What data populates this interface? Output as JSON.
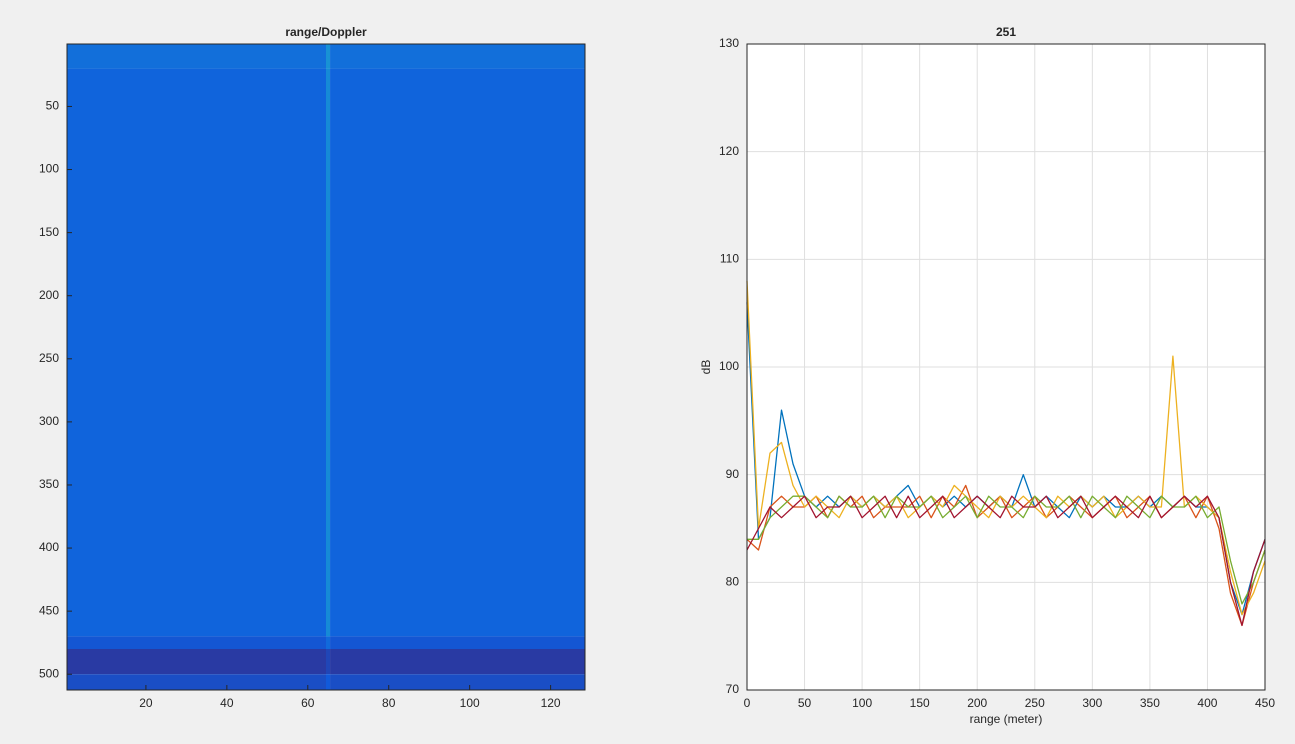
{
  "chart_data": [
    {
      "type": "heatmap",
      "title": "range/Doppler",
      "xbins": [
        0.5,
        64.5,
        65.5,
        128.5
      ],
      "ybins": [
        0.5,
        20,
        470,
        480,
        500,
        512.5
      ],
      "z": [
        [
          0.32,
          0.45,
          0.32
        ],
        [
          0.28,
          0.42,
          0.28
        ],
        [
          0.22,
          0.3,
          0.22
        ],
        [
          0.08,
          0.14,
          0.08
        ],
        [
          0.18,
          0.24,
          0.18
        ]
      ],
      "colormap": [
        "#352a87",
        "#0f5cdd",
        "#1aa0d2",
        "#a5be6a",
        "#f9fb0e"
      ],
      "xlim": [
        0.5,
        128.5
      ],
      "xticks": [
        20,
        40,
        60,
        80,
        100,
        120
      ],
      "ylim": [
        0.5,
        512.5
      ],
      "yticks": [
        50,
        100,
        150,
        200,
        250,
        300,
        350,
        400,
        450,
        500
      ],
      "yreverse": true
    },
    {
      "type": "line",
      "title": "251",
      "xlabel": "range (meter)",
      "ylabel": "dB",
      "x": [
        0,
        10,
        20,
        30,
        40,
        50,
        60,
        70,
        80,
        90,
        100,
        110,
        120,
        130,
        140,
        150,
        160,
        170,
        180,
        190,
        200,
        210,
        220,
        230,
        240,
        250,
        260,
        270,
        280,
        290,
        300,
        310,
        320,
        330,
        340,
        350,
        360,
        370,
        380,
        390,
        400,
        410,
        420,
        430,
        440,
        450
      ],
      "series": [
        {
          "color": "#0072bd",
          "values": [
            106,
            84,
            86,
            96,
            91,
            88,
            87,
            88,
            87,
            88,
            87,
            88,
            87,
            88,
            89,
            87,
            88,
            87,
            88,
            87,
            88,
            87,
            88,
            87,
            90,
            87,
            88,
            87,
            86,
            88,
            87,
            88,
            87,
            87,
            88,
            87,
            88,
            87,
            88,
            87,
            87,
            86,
            80,
            77,
            81,
            84
          ]
        },
        {
          "color": "#d95319",
          "values": [
            84,
            83,
            87,
            88,
            87,
            87,
            88,
            86,
            88,
            87,
            88,
            86,
            87,
            87,
            87,
            88,
            86,
            88,
            87,
            89,
            86,
            87,
            88,
            86,
            87,
            88,
            86,
            87,
            88,
            87,
            86,
            87,
            88,
            86,
            87,
            88,
            86,
            87,
            88,
            86,
            88,
            85,
            79,
            76,
            80,
            83
          ]
        },
        {
          "color": "#edb120",
          "values": [
            108,
            85,
            92,
            93,
            89,
            87,
            88,
            87,
            86,
            88,
            87,
            88,
            87,
            88,
            86,
            87,
            88,
            87,
            89,
            88,
            87,
            86,
            88,
            87,
            88,
            87,
            86,
            88,
            87,
            88,
            87,
            88,
            86,
            87,
            88,
            87,
            87,
            101,
            87,
            88,
            87,
            86,
            81,
            77,
            79,
            82
          ]
        },
        {
          "color": "#77ac30",
          "values": [
            84,
            84,
            86,
            87,
            88,
            88,
            87,
            86,
            88,
            87,
            87,
            88,
            86,
            88,
            87,
            87,
            88,
            86,
            87,
            88,
            86,
            88,
            87,
            87,
            86,
            88,
            87,
            87,
            88,
            86,
            88,
            87,
            86,
            88,
            87,
            86,
            88,
            87,
            87,
            88,
            86,
            87,
            82,
            78,
            80,
            83
          ]
        },
        {
          "color": "#a2142f",
          "values": [
            83,
            85,
            87,
            86,
            87,
            88,
            86,
            87,
            87,
            88,
            86,
            87,
            88,
            86,
            88,
            86,
            87,
            88,
            86,
            87,
            88,
            87,
            86,
            88,
            87,
            87,
            88,
            86,
            87,
            88,
            86,
            87,
            88,
            87,
            86,
            88,
            86,
            87,
            88,
            87,
            88,
            86,
            80,
            76,
            81,
            84
          ]
        }
      ],
      "xlim": [
        0,
        450
      ],
      "xticks": [
        0,
        50,
        100,
        150,
        200,
        250,
        300,
        350,
        400,
        450
      ],
      "ylim": [
        70,
        130
      ],
      "yticks": [
        70,
        80,
        90,
        100,
        110,
        120,
        130
      ],
      "grid": true
    }
  ]
}
